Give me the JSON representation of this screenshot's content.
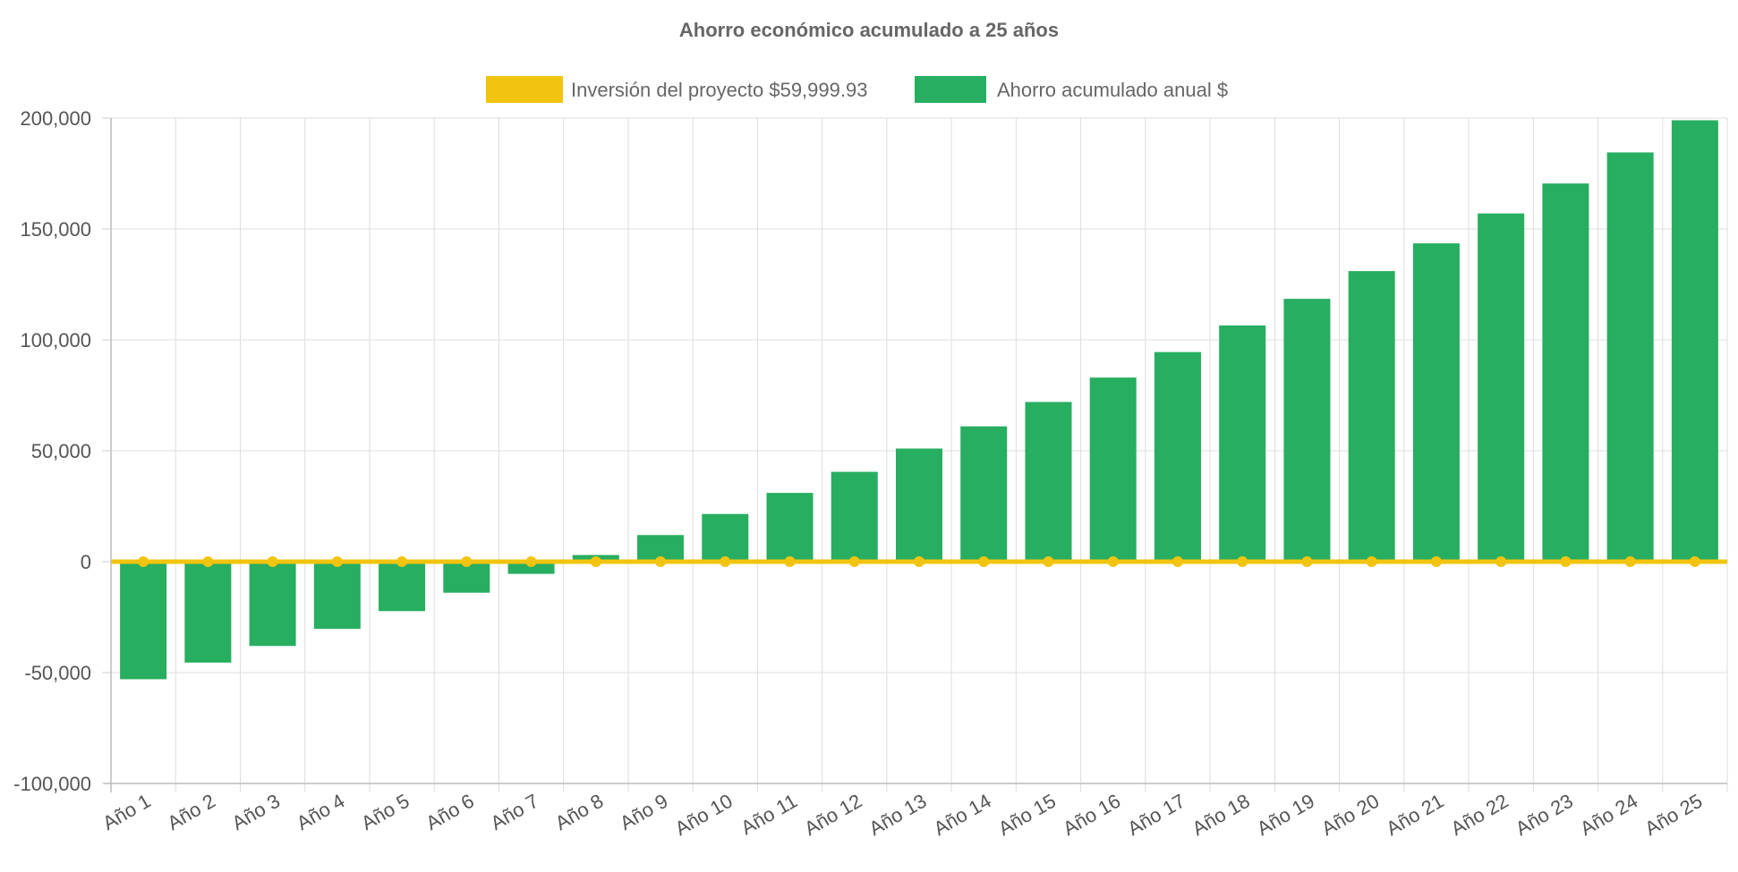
{
  "chart_data": {
    "type": "bar",
    "title": "Ahorro económico acumulado a 25 años",
    "xlabel": "",
    "ylabel": "",
    "categories": [
      "Año 1",
      "Año 2",
      "Año 3",
      "Año 4",
      "Año 5",
      "Año 6",
      "Año 7",
      "Año 8",
      "Año 9",
      "Año 10",
      "Año 11",
      "Año 12",
      "Año 13",
      "Año 14",
      "Año 15",
      "Año 16",
      "Año 17",
      "Año 18",
      "Año 19",
      "Año 20",
      "Año 21",
      "Año 22",
      "Año 23",
      "Año 24",
      "Año 25"
    ],
    "ylim": [
      -100000,
      200000
    ],
    "y_ticks": [
      200000,
      150000,
      100000,
      50000,
      0,
      -50000,
      -100000
    ],
    "y_tick_labels": [
      "200,000",
      "150,000",
      "100,000",
      "50,000",
      "0",
      "-50,000",
      "-100,000"
    ],
    "grid": true,
    "legend_position": "top-center",
    "series": [
      {
        "name": "Inversión del proyecto $59,999.93",
        "type": "line",
        "color": "#f2c40f",
        "values": [
          0,
          0,
          0,
          0,
          0,
          0,
          0,
          0,
          0,
          0,
          0,
          0,
          0,
          0,
          0,
          0,
          0,
          0,
          0,
          0,
          0,
          0,
          0,
          0,
          0
        ]
      },
      {
        "name": "Ahorro acumulado anual $",
        "type": "bar",
        "color": "#27ae60",
        "values": [
          -53000,
          -45500,
          -38000,
          -30300,
          -22300,
          -14000,
          -5500,
          3000,
          12000,
          21500,
          31000,
          40500,
          51000,
          61000,
          72000,
          83000,
          94500,
          106500,
          118500,
          131000,
          143500,
          157000,
          170500,
          184500,
          199000
        ]
      }
    ]
  }
}
